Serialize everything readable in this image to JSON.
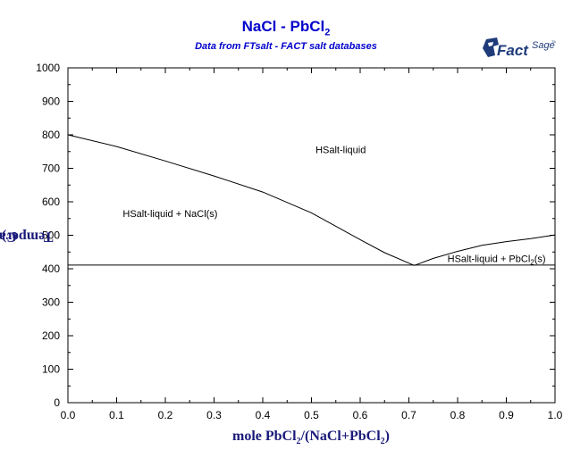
{
  "header": {
    "title_main": "NaCl - PbCl",
    "title_sub": "2",
    "subtitle": "Data from FTsalt - FACT salt databases"
  },
  "logo": {
    "text_fact": "Fact",
    "text_sage": "Sage",
    "mark": "TM"
  },
  "chart_data": {
    "type": "line",
    "xlabel_parts": [
      "mole PbCl",
      "2",
      "/(NaCl+PbCl",
      "2",
      ")"
    ],
    "ylabel_parts": [
      "Temperature (",
      "o",
      "C)"
    ],
    "xlim": [
      0,
      1
    ],
    "ylim": [
      0,
      1000
    ],
    "x_ticks": [
      "0.0",
      "0.1",
      "0.2",
      "0.3",
      "0.4",
      "0.5",
      "0.6",
      "0.7",
      "0.8",
      "0.9",
      "1.0"
    ],
    "y_ticks": [
      "0",
      "100",
      "200",
      "300",
      "400",
      "500",
      "600",
      "700",
      "800",
      "900",
      "1000"
    ],
    "grid": false,
    "series": [
      {
        "values_x": [
          0.0,
          0.1,
          0.2,
          0.3,
          0.4,
          0.5,
          0.6,
          0.65,
          0.711
        ],
        "values_y": [
          800,
          765,
          722,
          677,
          629,
          567,
          487,
          448,
          410
        ]
      },
      {
        "values_x": [
          0.711,
          0.75,
          0.8,
          0.85,
          0.9,
          0.95,
          1.0
        ],
        "values_y": [
          410,
          431,
          452,
          470,
          481,
          490,
          501
        ]
      },
      {
        "values_x": [
          0.0,
          1.0
        ],
        "values_y": [
          411,
          411
        ]
      }
    ],
    "annotations": [
      {
        "text": "HSalt-liquid",
        "x": 0.56,
        "y": 745
      },
      {
        "text": "HSalt-liquid + NaCl(s)",
        "x": 0.21,
        "y": 555
      },
      {
        "text_parts": [
          "HSalt-liquid + PbCl",
          "2",
          "(s)"
        ],
        "x": 0.88,
        "y": 420
      }
    ]
  }
}
